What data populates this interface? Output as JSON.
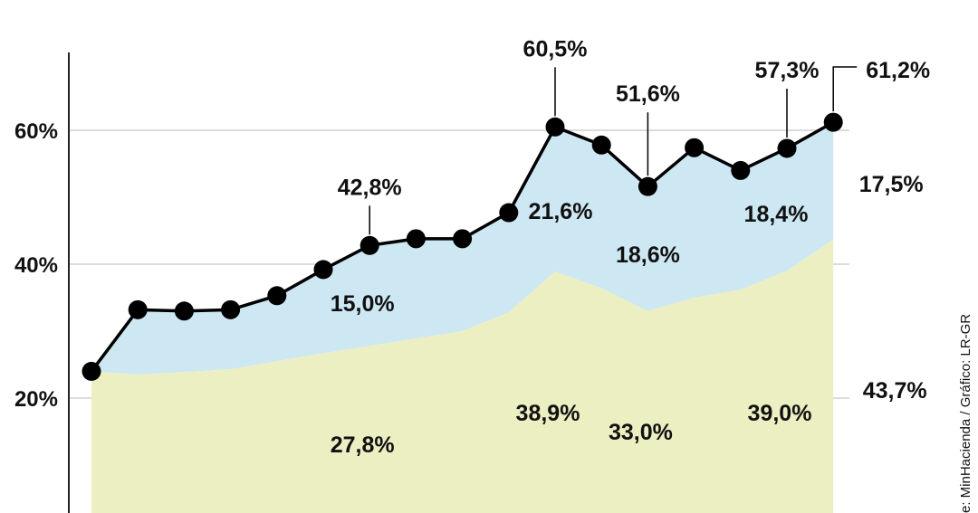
{
  "chart_data": {
    "type": "area",
    "y_ticks": [
      {
        "value": 20,
        "label": "20%"
      },
      {
        "value": 40,
        "label": "40%"
      },
      {
        "value": 60,
        "label": "60%"
      }
    ],
    "ylim": [
      0,
      72
    ],
    "grid": true,
    "legend": "none",
    "series": [
      {
        "kind": "total-line",
        "values": [
          24.0,
          33.2,
          33.0,
          33.2,
          35.3,
          39.2,
          42.8,
          43.8,
          43.8,
          47.7,
          60.5,
          57.8,
          51.6,
          57.4,
          54.0,
          57.3,
          61.2
        ]
      },
      {
        "kind": "lower-area",
        "values": [
          24.0,
          23.5,
          23.9,
          24.3,
          25.5,
          26.7,
          27.8,
          28.9,
          30.0,
          32.8,
          38.9,
          36.4,
          33.0,
          35.0,
          36.2,
          39.0,
          43.7
        ]
      }
    ],
    "labels": {
      "top_callouts": [
        {
          "index": 6,
          "text": "42,8%"
        },
        {
          "index": 10,
          "text": "60,5%"
        },
        {
          "index": 12,
          "text": "51,6%"
        },
        {
          "index": 15,
          "text": "57,3%"
        },
        {
          "index": 16,
          "text": "61,2%"
        }
      ],
      "upper_area": [
        {
          "index": 6,
          "text": "15,0%"
        },
        {
          "index": 10,
          "text": "21,6%"
        },
        {
          "index": 12,
          "text": "18,6%"
        },
        {
          "index": 15,
          "text": "18,4%"
        },
        {
          "index": 16,
          "text": "17,5%"
        }
      ],
      "lower_area": [
        {
          "index": 6,
          "text": "27,8%"
        },
        {
          "index": 10,
          "text": "38,9%"
        },
        {
          "index": 12,
          "text": "33,0%"
        },
        {
          "index": 15,
          "text": "39,0%"
        },
        {
          "index": 16,
          "text": "43,7%"
        }
      ]
    },
    "colors": {
      "upper_area": "#cde7f3",
      "lower_area": "#ecefc2",
      "line": "#000000",
      "grid": "#c8c8c8"
    }
  },
  "source_note": "e: MinHacienda / Gráfico: LR-GR"
}
